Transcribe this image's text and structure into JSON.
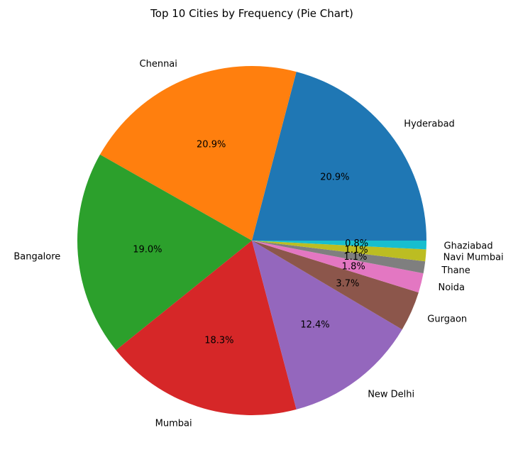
{
  "chart_data": {
    "type": "pie",
    "title": "Top 10 Cities by Frequency (Pie Chart)",
    "start_angle_deg": 0,
    "direction": "counterclockwise",
    "slices": [
      {
        "label": "Hyderabad",
        "pct": "20.9%",
        "value": 20.9,
        "color": "#1f77b4"
      },
      {
        "label": "Chennai",
        "pct": "20.9%",
        "value": 20.9,
        "color": "#ff7f0e"
      },
      {
        "label": "Bangalore",
        "pct": "19.0%",
        "value": 19.0,
        "color": "#2ca02c"
      },
      {
        "label": "Mumbai",
        "pct": "18.3%",
        "value": 18.3,
        "color": "#d62728"
      },
      {
        "label": "New Delhi",
        "pct": "12.4%",
        "value": 12.4,
        "color": "#9467bd"
      },
      {
        "label": "Gurgaon",
        "pct": "3.7%",
        "value": 3.7,
        "color": "#8c564b"
      },
      {
        "label": "Noida",
        "pct": "1.8%",
        "value": 1.8,
        "color": "#e377c2"
      },
      {
        "label": "Thane",
        "pct": "1.1%",
        "value": 1.1,
        "color": "#7f7f7f"
      },
      {
        "label": "Navi Mumbai",
        "pct": "1.1%",
        "value": 1.1,
        "color": "#bcbd22"
      },
      {
        "label": "Ghaziabad",
        "pct": "0.8%",
        "value": 0.8,
        "color": "#17becf"
      }
    ]
  }
}
